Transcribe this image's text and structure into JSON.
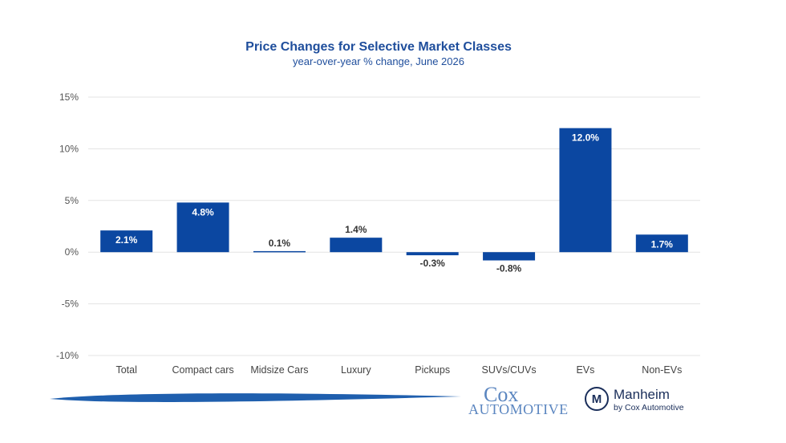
{
  "chart_data": {
    "type": "bar",
    "title": "Price Changes for Selective Market Classes",
    "subtitle": "year-over-year % change, June 2026",
    "categories": [
      "Total",
      "Compact cars",
      "Midsize Cars",
      "Luxury",
      "Pickups",
      "SUVs/CUVs",
      "EVs",
      "Non-EVs"
    ],
    "values": [
      2.1,
      4.8,
      0.1,
      1.4,
      -0.3,
      -0.8,
      12.0,
      1.7
    ],
    "data_labels": [
      "2.1%",
      "4.8%",
      "0.1%",
      "1.4%",
      "-0.3%",
      "-0.8%",
      "12.0%",
      "1.7%"
    ],
    "ylim": [
      -10,
      15
    ],
    "yticks": [
      15,
      10,
      5,
      0,
      -5,
      -10
    ],
    "ytick_labels": [
      "15%",
      "10%",
      "5%",
      "0%",
      "-5%",
      "-10%"
    ],
    "grid": true,
    "bar_color": "#0b47a1"
  },
  "footer": {
    "cox_line1": "Cox",
    "cox_line2": "Automotive",
    "manheim_line1": "Manheim",
    "manheim_line2": "by Cox Automotive",
    "manheim_glyph": "M",
    "swoosh_color": "#1f5fae"
  }
}
